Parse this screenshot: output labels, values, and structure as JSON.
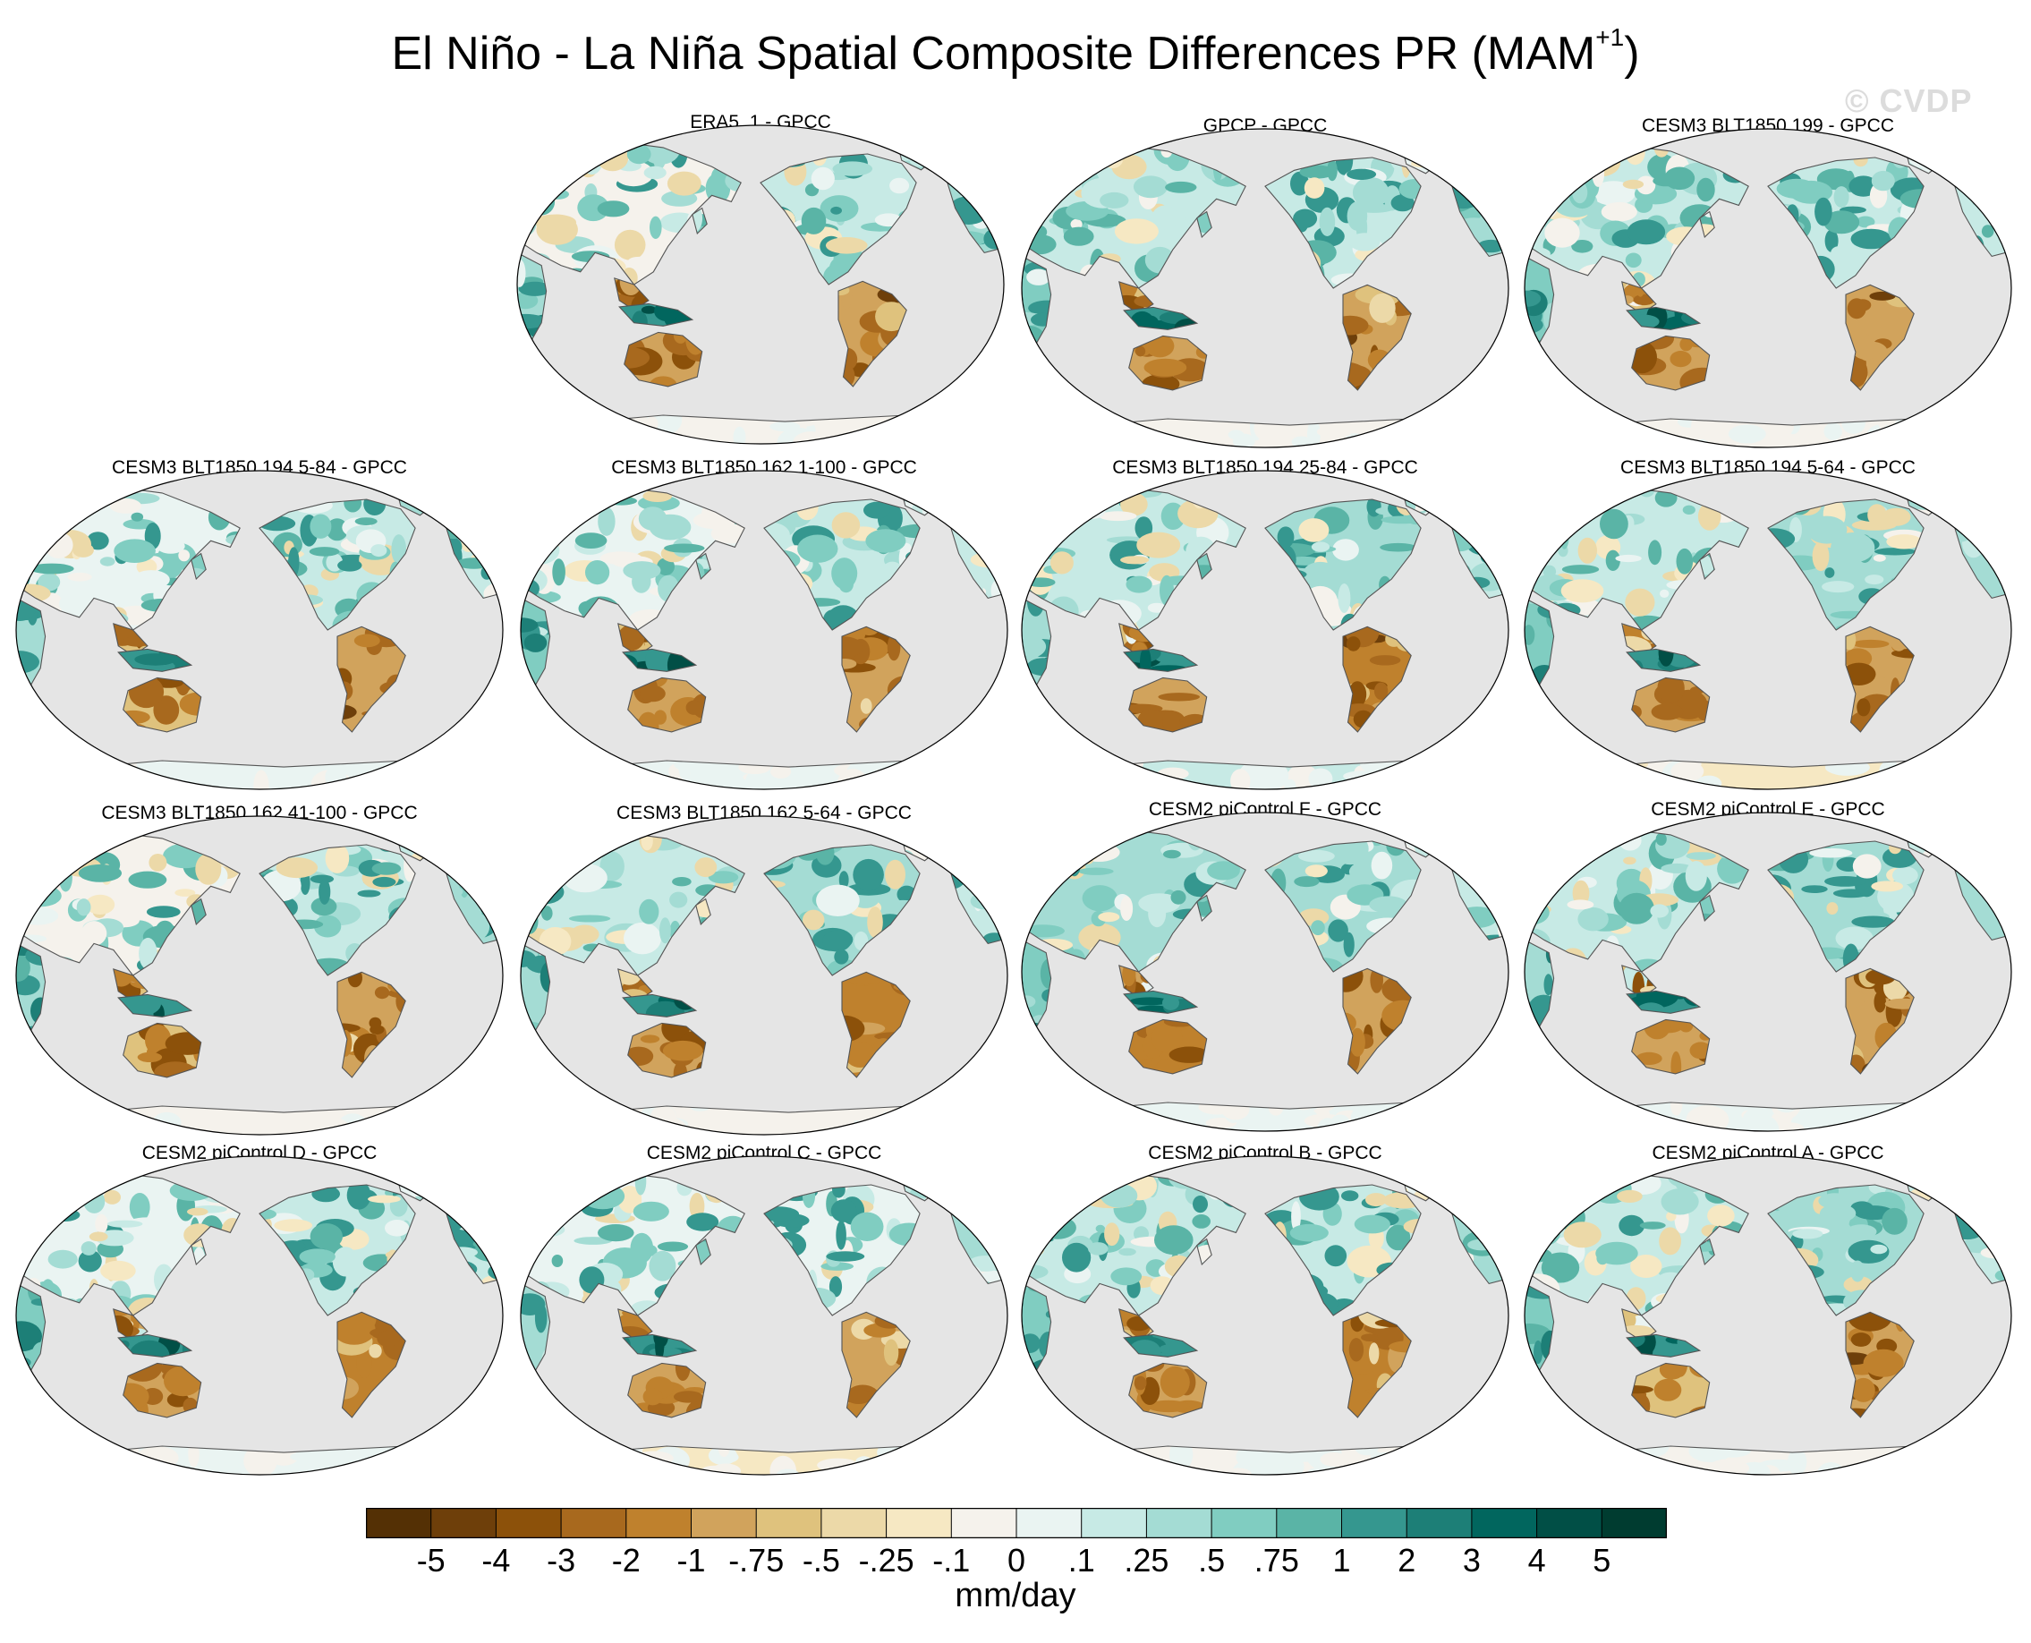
{
  "title_main": "El Niño - La Niña Spatial Composite Differences PR (MAM",
  "title_sup": "+1",
  "title_close": ")",
  "watermark": "© CVDP",
  "colors": {
    "ocean": "#e5e5e5",
    "coast": "#555555",
    "palette": [
      "#543005",
      "#6e3f0a",
      "#8c510a",
      "#a8691e",
      "#bf812d",
      "#d1a35c",
      "#dfc27d",
      "#ecd9a8",
      "#f6e8c3",
      "#f5f2ec",
      "#eaf4f2",
      "#c7eae5",
      "#a4dcd4",
      "#80cdc1",
      "#5ab4a6",
      "#35978f",
      "#1d7f77",
      "#01665e",
      "#014f46",
      "#003c30"
    ]
  },
  "panels": [
    {
      "title": "ERA5_1 - GPCC",
      "seed": 3
    },
    {
      "title": "GPCP - GPCC",
      "seed": 7
    },
    {
      "title": "CESM3 BLT1850 199 - GPCC",
      "seed": 11
    },
    {
      "title": "CESM3 BLT1850 194 5-84 - GPCC",
      "seed": 13
    },
    {
      "title": "CESM3 BLT1850 162 1-100 - GPCC",
      "seed": 17
    },
    {
      "title": "CESM3 BLT1850 194 25-84 - GPCC",
      "seed": 19
    },
    {
      "title": "CESM3 BLT1850 194 5-64 - GPCC",
      "seed": 23
    },
    {
      "title": "CESM3 BLT1850 162 41-100 - GPCC",
      "seed": 29
    },
    {
      "title": "CESM3 BLT1850 162 5-64 - GPCC",
      "seed": 31
    },
    {
      "title": "CESM2 piControl F - GPCC",
      "seed": 37
    },
    {
      "title": "CESM2 piControl E - GPCC",
      "seed": 41
    },
    {
      "title": "CESM2 piControl D - GPCC",
      "seed": 43
    },
    {
      "title": "CESM2 piControl C - GPCC",
      "seed": 47
    },
    {
      "title": "CESM2 piControl B - GPCC",
      "seed": 53
    },
    {
      "title": "CESM2 piControl A - GPCC",
      "seed": 59
    }
  ],
  "colorbar": {
    "labels": [
      "-5",
      "-4",
      "-3",
      "-2",
      "-1",
      "-.75",
      "-.5",
      "-.25",
      "-.1",
      "0",
      ".1",
      ".25",
      ".5",
      ".75",
      "1",
      "2",
      "3",
      "4",
      "5"
    ],
    "units": "mm/day"
  }
}
